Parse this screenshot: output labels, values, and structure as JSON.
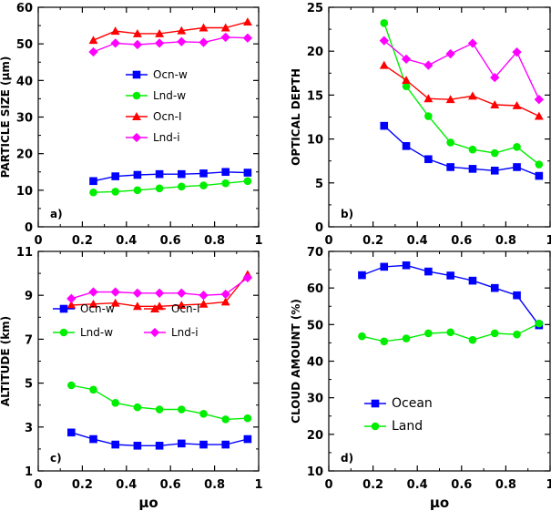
{
  "chart_data": [
    {
      "id": "a",
      "type": "line",
      "panel_label": "a)",
      "ylabel": "PARTICLE SIZE (μm)",
      "xlabel": "",
      "xlim": [
        0,
        1
      ],
      "ylim": [
        0,
        60
      ],
      "xticks": [
        "0",
        "0.2",
        "0.4",
        "0.6",
        "0.8",
        "1"
      ],
      "yticks": [
        "0",
        "10",
        "20",
        "30",
        "40",
        "50",
        "60"
      ],
      "legend_position": "center",
      "series": [
        {
          "name": "Ocn-w",
          "color": "#0000ff",
          "marker": "square",
          "x": [
            0.25,
            0.35,
            0.45,
            0.55,
            0.65,
            0.75,
            0.85,
            0.95
          ],
          "y": [
            12.5,
            13.8,
            14.2,
            14.4,
            14.4,
            14.6,
            15.0,
            14.8
          ]
        },
        {
          "name": "Lnd-w",
          "color": "#00ee00",
          "marker": "circle",
          "x": [
            0.25,
            0.35,
            0.45,
            0.55,
            0.65,
            0.75,
            0.85,
            0.95
          ],
          "y": [
            9.4,
            9.6,
            10.0,
            10.5,
            11.0,
            11.3,
            11.9,
            12.5
          ]
        },
        {
          "name": "Ocn-I",
          "color": "#ff0000",
          "marker": "triangle",
          "x": [
            0.25,
            0.35,
            0.45,
            0.55,
            0.65,
            0.75,
            0.85,
            0.95
          ],
          "y": [
            51.0,
            53.5,
            52.8,
            52.8,
            53.6,
            54.4,
            54.4,
            56.0
          ]
        },
        {
          "name": "Lnd-i",
          "color": "#ff00ff",
          "marker": "diamond",
          "x": [
            0.25,
            0.35,
            0.45,
            0.55,
            0.65,
            0.75,
            0.85,
            0.95
          ],
          "y": [
            47.8,
            50.2,
            49.8,
            50.2,
            50.6,
            50.4,
            51.8,
            51.6
          ]
        }
      ]
    },
    {
      "id": "b",
      "type": "line",
      "panel_label": "b)",
      "ylabel": "OPTICAL DEPTH",
      "xlabel": "",
      "xlim": [
        0,
        1
      ],
      "ylim": [
        0,
        25
      ],
      "xticks": [
        "0",
        "0.2",
        "0.4",
        "0.6",
        "0.8",
        "1"
      ],
      "yticks": [
        "0",
        "5",
        "10",
        "15",
        "20",
        "25"
      ],
      "legend_position": "none",
      "series": [
        {
          "name": "",
          "color": "#0000ff",
          "marker": "square",
          "x": [
            0.25,
            0.35,
            0.45,
            0.55,
            0.65,
            0.75,
            0.85,
            0.95
          ],
          "y": [
            11.5,
            9.2,
            7.7,
            6.8,
            6.6,
            6.4,
            6.8,
            5.8
          ]
        },
        {
          "name": "",
          "color": "#00ee00",
          "marker": "circle",
          "x": [
            0.25,
            0.35,
            0.45,
            0.55,
            0.65,
            0.75,
            0.85,
            0.95
          ],
          "y": [
            23.2,
            16.0,
            12.6,
            9.6,
            8.8,
            8.4,
            9.1,
            7.1
          ]
        },
        {
          "name": "",
          "color": "#ff0000",
          "marker": "triangle",
          "x": [
            0.25,
            0.35,
            0.45,
            0.55,
            0.65,
            0.75,
            0.85,
            0.95
          ],
          "y": [
            18.4,
            16.7,
            14.6,
            14.5,
            14.9,
            13.9,
            13.8,
            12.6
          ]
        },
        {
          "name": "",
          "color": "#ff00ff",
          "marker": "diamond",
          "x": [
            0.25,
            0.35,
            0.45,
            0.55,
            0.65,
            0.75,
            0.85,
            0.95
          ],
          "y": [
            21.2,
            19.1,
            18.4,
            19.7,
            20.9,
            17.0,
            19.9,
            14.5
          ]
        }
      ]
    },
    {
      "id": "c",
      "type": "line",
      "panel_label": "c)",
      "ylabel": "ALTITUDE (km)",
      "xlabel": "μo",
      "xlim": [
        0,
        1
      ],
      "ylim": [
        1,
        11
      ],
      "xticks": [
        "0",
        "0.2",
        "0.4",
        "0.6",
        "0.8",
        "1"
      ],
      "yticks": [
        "1",
        "3",
        "5",
        "7",
        "9",
        "11"
      ],
      "legend_position": "center",
      "series": [
        {
          "name": "Ocn-w",
          "color": "#0000ff",
          "marker": "square",
          "x": [
            0.15,
            0.25,
            0.35,
            0.45,
            0.55,
            0.65,
            0.75,
            0.85,
            0.95
          ],
          "y": [
            2.75,
            2.45,
            2.2,
            2.15,
            2.15,
            2.25,
            2.2,
            2.2,
            2.45
          ]
        },
        {
          "name": "Ocn-I",
          "color": "#ff0000",
          "marker": "triangle",
          "x": [
            0.15,
            0.25,
            0.35,
            0.45,
            0.55,
            0.65,
            0.75,
            0.85,
            0.95
          ],
          "y": [
            8.55,
            8.6,
            8.65,
            8.5,
            8.5,
            8.55,
            8.6,
            8.7,
            9.95
          ]
        },
        {
          "name": "Lnd-w",
          "color": "#00ee00",
          "marker": "circle",
          "x": [
            0.15,
            0.25,
            0.35,
            0.45,
            0.55,
            0.65,
            0.75,
            0.85,
            0.95
          ],
          "y": [
            4.9,
            4.7,
            4.1,
            3.9,
            3.8,
            3.8,
            3.6,
            3.35,
            3.4
          ]
        },
        {
          "name": "Lnd-i",
          "color": "#ff00ff",
          "marker": "diamond",
          "x": [
            0.15,
            0.25,
            0.35,
            0.45,
            0.55,
            0.65,
            0.75,
            0.85,
            0.95
          ],
          "y": [
            8.85,
            9.15,
            9.15,
            9.1,
            9.1,
            9.1,
            9.0,
            9.05,
            9.8
          ]
        }
      ]
    },
    {
      "id": "d",
      "type": "line",
      "panel_label": "d)",
      "ylabel": "CLOUD AMOUNT (%)",
      "xlabel": "μo",
      "xlim": [
        0,
        1
      ],
      "ylim": [
        10,
        70
      ],
      "xticks": [
        "0",
        "0.2",
        "0.4",
        "0.6",
        "0.8",
        "1"
      ],
      "yticks": [
        "10",
        "20",
        "30",
        "40",
        "50",
        "60",
        "70"
      ],
      "legend_position": "lower-center",
      "series": [
        {
          "name": "Ocean",
          "color": "#0000ff",
          "marker": "square",
          "x": [
            0.15,
            0.25,
            0.35,
            0.45,
            0.55,
            0.65,
            0.75,
            0.85,
            0.95
          ],
          "y": [
            63.5,
            65.8,
            66.2,
            64.5,
            63.4,
            62.0,
            60.0,
            58.0,
            49.8
          ]
        },
        {
          "name": "Land",
          "color": "#00ee00",
          "marker": "circle",
          "x": [
            0.15,
            0.25,
            0.35,
            0.45,
            0.55,
            0.65,
            0.75,
            0.85,
            0.95
          ],
          "y": [
            46.8,
            45.4,
            46.2,
            47.6,
            47.9,
            45.8,
            47.6,
            47.3,
            50.3
          ]
        }
      ]
    }
  ]
}
